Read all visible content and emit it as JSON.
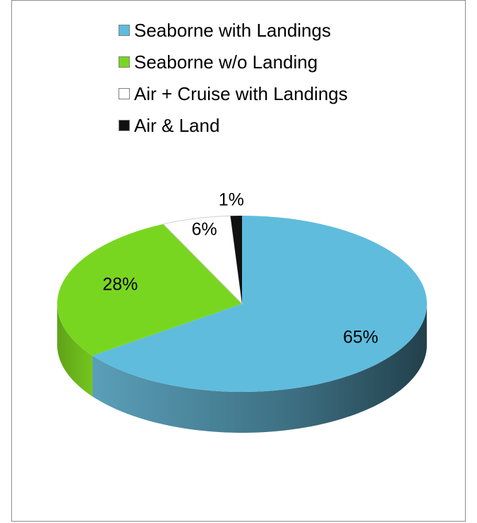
{
  "chart_data": {
    "type": "pie",
    "title": "",
    "style": "3d",
    "legend_position": "top",
    "slices": [
      {
        "label": "Seaborne with Landings",
        "value": 65,
        "data_label": "65%",
        "color": "#5fbcdd",
        "side_dark": "#2c5563"
      },
      {
        "label": "Seaborne w/o Landing",
        "value": 28,
        "data_label": "28%",
        "color": "#79d620",
        "side_dark": "#4f9012"
      },
      {
        "label": "Air + Cruise with Landings",
        "value": 6,
        "data_label": "6%",
        "color": "#ffffff",
        "side_dark": "#cfcfcf"
      },
      {
        "label": "Air & Land",
        "value": 1,
        "data_label": "1%",
        "color": "#111111",
        "side_dark": "#000000"
      }
    ]
  }
}
